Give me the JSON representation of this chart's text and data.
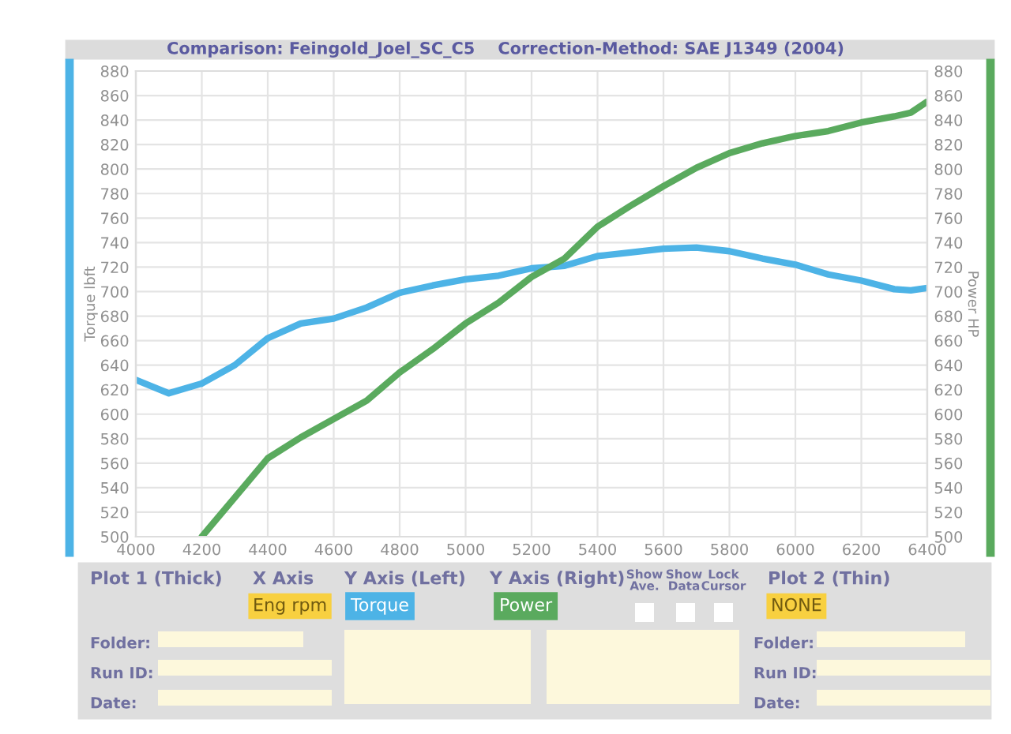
{
  "chart_data": {
    "type": "line",
    "title": "Comparison: Feingold_Joel_SC_C5    Correction-Method: SAE J1349 (2004)",
    "ylabel": "Torque lbft",
    "y2label": "Power HP",
    "x": [
      4000,
      4100,
      4200,
      4300,
      4400,
      4500,
      4600,
      4700,
      4800,
      4900,
      5000,
      5100,
      5200,
      5300,
      5400,
      5500,
      5600,
      5700,
      5800,
      5900,
      6000,
      6100,
      6200,
      6300,
      6350,
      6400
    ],
    "series": [
      {
        "name": "Torque",
        "color": "#4db3e6",
        "values": [
          628,
          617,
          625,
          640,
          662,
          674,
          678,
          687,
          699,
          705,
          710,
          713,
          719,
          721,
          729,
          732,
          735,
          736,
          733,
          727,
          722,
          714,
          709,
          702,
          701,
          703
        ]
      },
      {
        "name": "Power",
        "color": "#5aaa5e",
        "axis": "y2",
        "values": [
          null,
          null,
          500,
          532,
          564,
          581,
          596,
          611,
          634,
          653,
          674,
          691,
          712,
          727,
          753,
          770,
          786,
          801,
          813,
          821,
          827,
          831,
          838,
          843,
          846,
          855
        ]
      }
    ],
    "xlim": [
      4000,
      6400
    ],
    "xticks": [
      4000,
      4200,
      4400,
      4600,
      4800,
      5000,
      5200,
      5400,
      5600,
      5800,
      6000,
      6200,
      6400
    ],
    "ylim": [
      500,
      880
    ],
    "yticks": [
      500,
      520,
      540,
      560,
      580,
      600,
      620,
      640,
      660,
      680,
      700,
      720,
      740,
      760,
      780,
      800,
      820,
      840,
      860,
      880
    ],
    "y2lim": [
      500,
      880
    ],
    "y2ticks": [
      500,
      520,
      540,
      560,
      580,
      600,
      620,
      640,
      660,
      680,
      700,
      720,
      740,
      760,
      780,
      800,
      820,
      840,
      860,
      880
    ],
    "grid": true,
    "legend": "bottom",
    "line_style": "solid",
    "annotations": [
      "Plot 1 (Thick)",
      "X Axis",
      "Y Axis (Left)",
      "Y Axis (Right)",
      "Show Ave.",
      "Show Data",
      "Lock Cursor",
      "Plot 2 (Thin)",
      "Eng rpm",
      "NONE",
      "Folder:",
      "Run ID:",
      "Date:",
      "Folder:",
      "Run ID:",
      "Date:"
    ]
  }
}
